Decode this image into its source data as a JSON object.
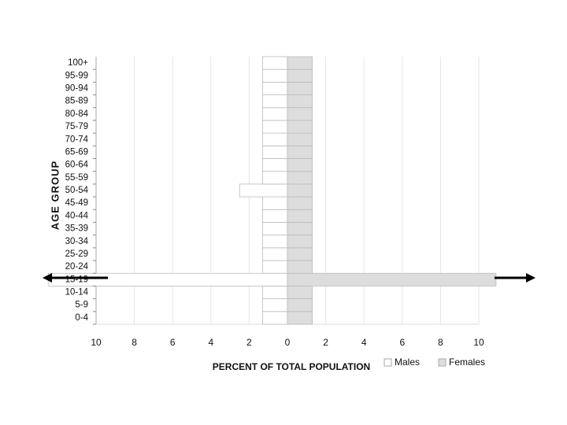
{
  "chart_data": {
    "type": "pyramid",
    "categories": [
      "0-4",
      "5-9",
      "10-14",
      "15-19",
      "20-24",
      "25-29",
      "30-34",
      "35-39",
      "40-44",
      "45-49",
      "50-54",
      "55-59",
      "60-64",
      "65-69",
      "70-74",
      "75-79",
      "80-84",
      "85-89",
      "90-94",
      "95-99",
      "100+"
    ],
    "series": [
      {
        "name": "Males",
        "color": "#ffffff",
        "values": [
          -1.3,
          -1.3,
          -1.3,
          -12.5,
          -1.3,
          -1.3,
          -1.3,
          -1.3,
          -1.3,
          -1.3,
          -2.5,
          -1.3,
          -1.3,
          -1.3,
          -1.3,
          -1.3,
          -1.3,
          -1.3,
          -1.3,
          -1.3,
          -1.3
        ]
      },
      {
        "name": "Females",
        "color": "#dddddd",
        "values": [
          1.3,
          1.3,
          1.3,
          10.9,
          1.3,
          1.3,
          1.3,
          1.3,
          1.3,
          1.3,
          1.3,
          1.3,
          1.3,
          1.3,
          1.3,
          1.3,
          1.3,
          1.3,
          1.3,
          1.3,
          1.3
        ]
      }
    ],
    "xlim": [
      -10,
      10
    ],
    "xticks": [
      {
        "value": -10,
        "label": "10"
      },
      {
        "value": -8,
        "label": "8"
      },
      {
        "value": -6,
        "label": "6"
      },
      {
        "value": -4,
        "label": "4"
      },
      {
        "value": -2,
        "label": "2"
      },
      0,
      2,
      4,
      6,
      8,
      10
    ],
    "xlabel": "PERCENT OF TOTAL POPULATION",
    "ylabel": "AGE GROUP",
    "grid": true
  }
}
